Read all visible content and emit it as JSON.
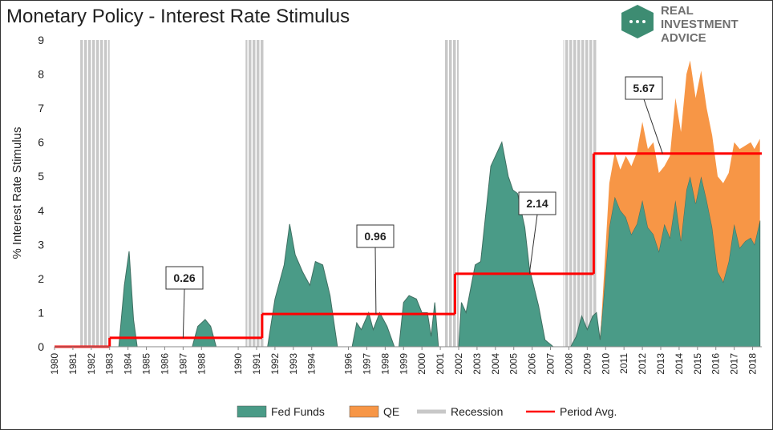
{
  "chart_data": {
    "type": "area",
    "title": "Monetary Policy - Interest Rate Stimulus",
    "y_label": "% Interest Rate Stimulus",
    "x": [
      1980,
      1983.5,
      1983.8,
      1984.06,
      1984.3,
      1984.5,
      1987.5,
      1987.8,
      1988.2,
      1988.5,
      1988.8,
      1991.6,
      1992.0,
      1992.5,
      1992.8,
      1993.1,
      1993.5,
      1993.9,
      1994.2,
      1994.6,
      1995.0,
      1995.4,
      1996.2,
      1996.45,
      1996.7,
      1997.1,
      1997.35,
      1997.7,
      1998.1,
      1998.5,
      1998.75,
      1999.0,
      1999.3,
      1999.7,
      2000.0,
      2000.3,
      2000.5,
      2000.7,
      2000.9,
      2002.0,
      2002.15,
      2002.4,
      2002.9,
      2003.2,
      2003.75,
      2004.35,
      2004.7,
      2004.95,
      2005.2,
      2005.6,
      2005.85,
      2006.35,
      2006.7,
      2007.15,
      2008.1,
      2008.4,
      2008.7,
      2009.0,
      2009.3,
      2009.5,
      2009.7,
      2009.9,
      2010.2,
      2010.5,
      2010.8,
      2011.1,
      2011.4,
      2011.7,
      2012.0,
      2012.3,
      2012.6,
      2012.9,
      2013.2,
      2013.5,
      2013.8,
      2014.1,
      2014.4,
      2014.6,
      2014.9,
      2015.2,
      2015.5,
      2015.8,
      2016.1,
      2016.4,
      2016.7,
      2017.0,
      2017.3,
      2017.6,
      2017.9,
      2018.1,
      2018.4
    ],
    "series": [
      {
        "name": "Fed Funds",
        "color": "#4a9b87",
        "values": [
          0,
          0,
          1.8,
          2.8,
          0.8,
          0,
          0,
          0.6,
          0.8,
          0.6,
          0,
          0,
          1.4,
          2.4,
          3.6,
          2.7,
          2.2,
          1.8,
          2.5,
          2.4,
          1.5,
          0,
          0,
          0.7,
          0.5,
          1.0,
          0.5,
          1.0,
          0.6,
          0,
          0,
          1.3,
          1.5,
          1.4,
          1.0,
          1.0,
          0.3,
          1.3,
          0,
          0,
          1.3,
          1.0,
          2.4,
          2.5,
          5.3,
          6.0,
          5.0,
          4.6,
          4.5,
          3.5,
          2.3,
          1.2,
          0.2,
          0,
          0,
          0.3,
          0.9,
          0.5,
          0.9,
          1.0,
          0.2,
          1.5,
          3.5,
          4.4,
          4.0,
          3.8,
          3.3,
          3.6,
          4.3,
          3.5,
          3.3,
          2.8,
          3.6,
          3.2,
          4.3,
          3.1,
          4.6,
          5.0,
          4.2,
          5.0,
          4.3,
          3.5,
          2.2,
          1.9,
          2.5,
          3.6,
          2.9,
          3.1,
          3.2,
          3.0,
          3.7
        ]
      },
      {
        "name": "QE",
        "color": "#f79646",
        "values": [
          null,
          null,
          null,
          null,
          null,
          null,
          null,
          null,
          null,
          null,
          null,
          null,
          null,
          null,
          null,
          null,
          null,
          null,
          null,
          null,
          null,
          null,
          null,
          null,
          null,
          null,
          null,
          null,
          null,
          null,
          null,
          null,
          null,
          null,
          null,
          null,
          null,
          null,
          null,
          null,
          null,
          null,
          null,
          null,
          null,
          null,
          null,
          null,
          null,
          null,
          null,
          null,
          null,
          null,
          null,
          null,
          null,
          null,
          null,
          null,
          0,
          0.5,
          1.3,
          1.3,
          1.2,
          1.8,
          2.0,
          2.1,
          2.3,
          2.3,
          2.7,
          2.3,
          1.7,
          2.4,
          3.0,
          3.2,
          3.4,
          3.4,
          3.1,
          3.1,
          2.7,
          2.7,
          2.8,
          2.9,
          2.6,
          2.4,
          2.9,
          2.8,
          2.8,
          2.8,
          2.4
        ]
      }
    ],
    "recession": {
      "name": "Recession",
      "color": "#c8c8c8",
      "spans": [
        [
          1981.4,
          1983.0
        ],
        [
          1990.4,
          1991.4
        ],
        [
          2001.2,
          2002.0
        ],
        [
          2007.7,
          2009.5
        ]
      ]
    },
    "period_avg": {
      "name": "Period Avg.",
      "color": "#ff0000",
      "breaks": [
        1980,
        1983.0,
        1991.3,
        2001.8,
        2009.35,
        2018.5
      ],
      "values": [
        0,
        0.26,
        0.96,
        2.14,
        5.67
      ]
    },
    "xlim": [
      1980,
      2018.5
    ],
    "xticks": [
      1980,
      1981,
      1982,
      1983,
      1984,
      1985,
      1986,
      1987,
      1988,
      1990,
      1991,
      1992,
      1993,
      1994,
      1996,
      1997,
      1998,
      1999,
      2000,
      2001,
      2002,
      2003,
      2004,
      2005,
      2006,
      2007,
      2008,
      2009,
      2010,
      2011,
      2012,
      2013,
      2014,
      2015,
      2016,
      2017,
      2018
    ],
    "ylim": [
      0,
      9
    ],
    "yticks": [
      0,
      1,
      2,
      3,
      4,
      5,
      6,
      7,
      8,
      9
    ]
  },
  "logo": {
    "line1": "REAL",
    "line2": "INVESTMENT",
    "line3": "ADVICE"
  }
}
